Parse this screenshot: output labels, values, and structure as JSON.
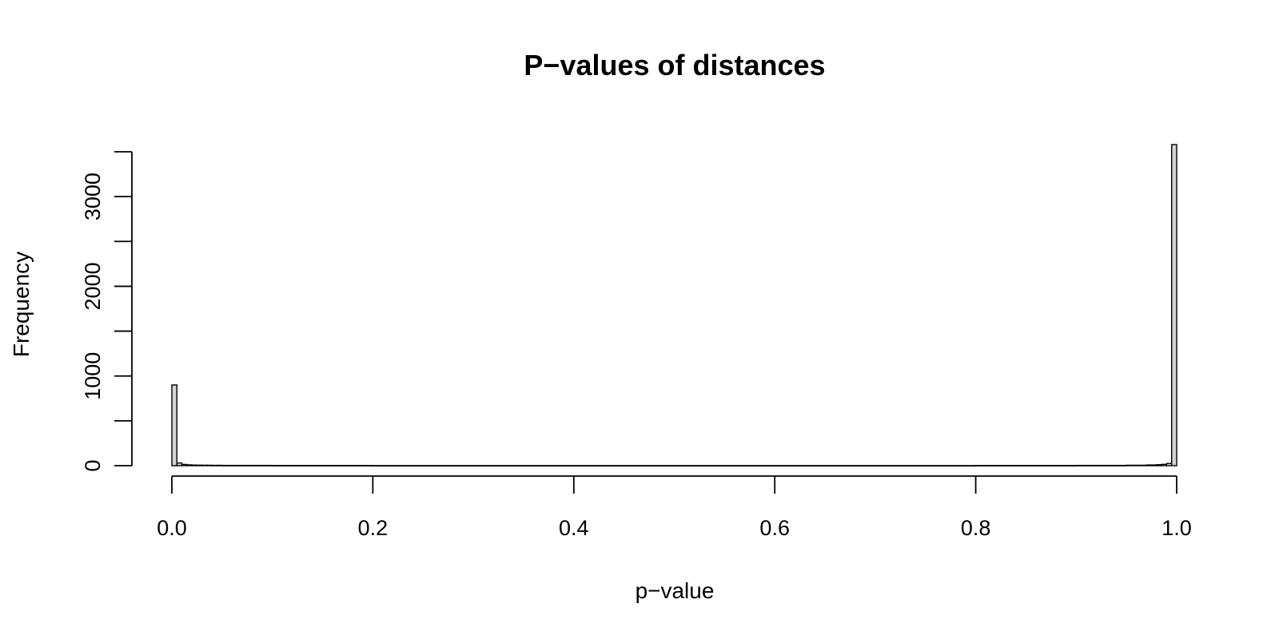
{
  "chart_data": {
    "type": "bar",
    "title": "P−values of distances",
    "xlabel": "p−value",
    "ylabel": "Frequency",
    "xlim": [
      0,
      1
    ],
    "ylim": [
      0,
      3500
    ],
    "x_ticks": [
      0,
      0.2,
      0.4,
      0.6,
      0.8,
      1
    ],
    "x_tick_labels": [
      "0.0",
      "0.2",
      "0.4",
      "0.6",
      "0.8",
      "1.0"
    ],
    "y_ticks": [
      0,
      500,
      1000,
      1500,
      2000,
      2500,
      3000,
      3500
    ],
    "y_tick_labels": [
      "0",
      "",
      "1000",
      "",
      "2000",
      "",
      "3000",
      ""
    ],
    "bin_width": 0.005,
    "bar_fill": "#d3d3d3",
    "bar_stroke": "#000000",
    "grid": false,
    "legend": "none",
    "bins": [
      {
        "x0": 0.0,
        "x1": 0.005,
        "count": 900
      },
      {
        "x0": 0.005,
        "x1": 0.01,
        "count": 30
      },
      {
        "x0": 0.01,
        "x1": 0.015,
        "count": 14
      },
      {
        "x0": 0.015,
        "x1": 0.02,
        "count": 9
      },
      {
        "x0": 0.02,
        "x1": 0.025,
        "count": 7
      },
      {
        "x0": 0.025,
        "x1": 0.03,
        "count": 6
      },
      {
        "x0": 0.03,
        "x1": 0.035,
        "count": 5
      },
      {
        "x0": 0.035,
        "x1": 0.04,
        "count": 5
      },
      {
        "x0": 0.04,
        "x1": 0.045,
        "count": 4
      },
      {
        "x0": 0.045,
        "x1": 0.05,
        "count": 4
      },
      {
        "x0": 0.05,
        "x1": 0.1,
        "count": 3
      },
      {
        "x0": 0.1,
        "x1": 0.2,
        "count": 2
      },
      {
        "x0": 0.2,
        "x1": 0.8,
        "count": 1
      },
      {
        "x0": 0.8,
        "x1": 0.9,
        "count": 2
      },
      {
        "x0": 0.9,
        "x1": 0.95,
        "count": 3
      },
      {
        "x0": 0.95,
        "x1": 0.97,
        "count": 5
      },
      {
        "x0": 0.97,
        "x1": 0.98,
        "count": 8
      },
      {
        "x0": 0.98,
        "x1": 0.985,
        "count": 11
      },
      {
        "x0": 0.985,
        "x1": 0.99,
        "count": 15
      },
      {
        "x0": 0.99,
        "x1": 0.995,
        "count": 25
      },
      {
        "x0": 0.995,
        "x1": 1.0,
        "count": 3580
      }
    ]
  }
}
